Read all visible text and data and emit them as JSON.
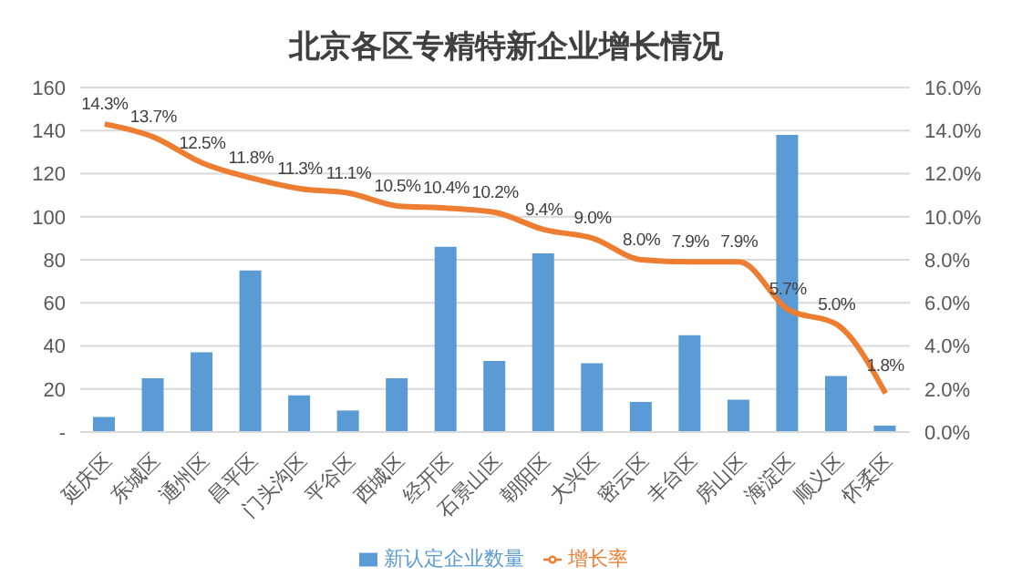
{
  "chart_data": {
    "type": "bar",
    "title": "北京各区专精特新企业增长情况",
    "categories": [
      "延庆区",
      "东城区",
      "通州区",
      "昌平区",
      "门头沟区",
      "平谷区",
      "西城区",
      "经开区",
      "石景山区",
      "朝阳区",
      "大兴区",
      "密云区",
      "丰台区",
      "房山区",
      "海淀区",
      "顺义区",
      "怀柔区"
    ],
    "series": [
      {
        "name": "新认定企业数量",
        "color": "#5b9bd5",
        "values": [
          7,
          25,
          37,
          75,
          17,
          10,
          25,
          86,
          33,
          83,
          32,
          14,
          45,
          15,
          138,
          26,
          3
        ]
      },
      {
        "name": "增长率",
        "type": "line",
        "axis": "y2",
        "color": "#ed7d31",
        "values": [
          14.3,
          13.7,
          12.5,
          11.8,
          11.3,
          11.1,
          10.5,
          10.4,
          10.2,
          9.4,
          9.0,
          8.0,
          7.9,
          7.9,
          5.7,
          5.0,
          1.8
        ],
        "value_labels": [
          "14.3%",
          "13.7%",
          "12.5%",
          "11.8%",
          "11.3%",
          "11.1%",
          "10.5%",
          "10.4%",
          "10.2%",
          "9.4%",
          "9.0%",
          "8.0%",
          "7.9%",
          "7.9%",
          "5.7%",
          "5.0%",
          "1.8%"
        ]
      }
    ],
    "ylim": [
      0,
      160
    ],
    "yticks": [
      {
        "value": 0,
        "label": "-"
      },
      20,
      40,
      60,
      80,
      100,
      120,
      140,
      160
    ],
    "y2lim": [
      0,
      16
    ],
    "y2ticks": [
      {
        "value": 0,
        "label": "0.0%"
      },
      {
        "value": 2,
        "label": "2.0%"
      },
      {
        "value": 4,
        "label": "4.0%"
      },
      {
        "value": 6,
        "label": "6.0%"
      },
      {
        "value": 8,
        "label": "8.0%"
      },
      {
        "value": 10,
        "label": "10.0%"
      },
      {
        "value": 12,
        "label": "12.0%"
      },
      {
        "value": 14,
        "label": "14.0%"
      },
      {
        "value": 16,
        "label": "16.0%"
      }
    ],
    "grid": "y",
    "legend": "bottom",
    "marker": "none"
  }
}
